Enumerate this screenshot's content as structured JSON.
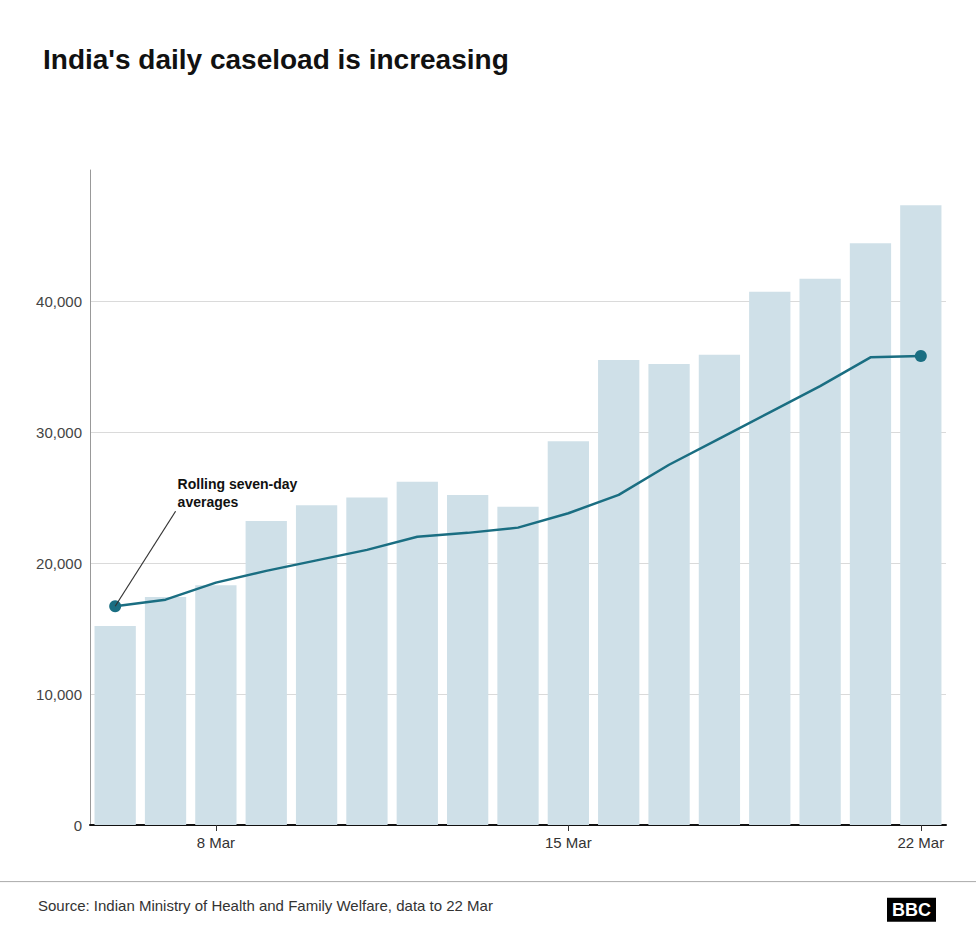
{
  "chart_data": {
    "type": "bar",
    "title": "India's daily caseload is increasing",
    "source": "Source: Indian Ministry of Health and Family Welfare, data to 22 Mar",
    "logo": "BBC",
    "annotations": [
      "Rolling seven-day\naverages"
    ],
    "categories": [
      null,
      null,
      "8 Mar",
      null,
      null,
      null,
      null,
      null,
      null,
      "15 Mar",
      null,
      null,
      null,
      null,
      null,
      null,
      "22 Mar"
    ],
    "series": [
      {
        "type": "bar",
        "color": "#cfe0e8",
        "values": [
          15200,
          17400,
          18300,
          23200,
          24400,
          25000,
          26200,
          25200,
          24300,
          29300,
          35500,
          35200,
          35900,
          40700,
          41700,
          44400,
          47300
        ]
      },
      {
        "type": "line",
        "color": "#1a6e82",
        "marker": "circle",
        "values": [
          16700,
          17200,
          18500,
          19400,
          20200,
          21000,
          22000,
          22300,
          22700,
          23800,
          25200,
          27500,
          29500,
          31500,
          33500,
          35700,
          35800
        ]
      }
    ],
    "ylim": [
      0,
      50000
    ],
    "yticks": [
      0,
      {
        "value": 10000,
        "label": "10,000"
      },
      {
        "value": 20000,
        "label": "20,000"
      },
      {
        "value": 30000,
        "label": "30,000"
      },
      {
        "value": 40000,
        "label": "40,000"
      }
    ],
    "grid": true
  }
}
